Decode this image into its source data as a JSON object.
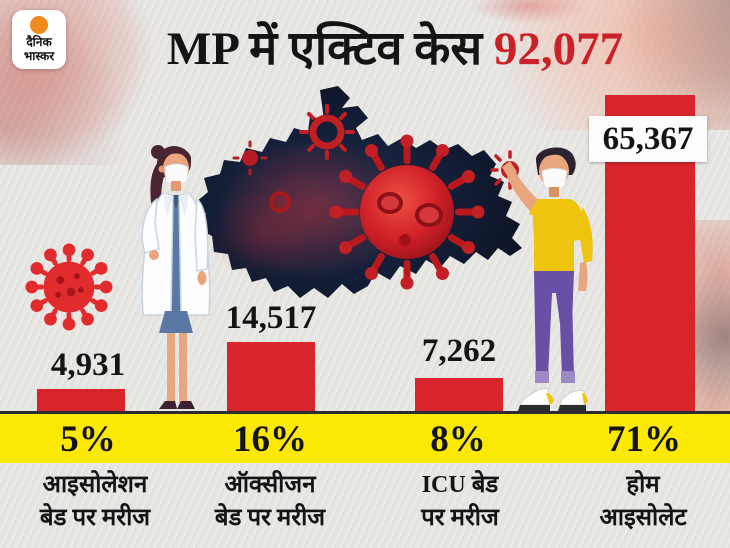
{
  "brand": {
    "line1": "दैनिक",
    "line2": "भास्कर"
  },
  "title": {
    "prefix": "MP में एक्टिव केस ",
    "value": "92,077"
  },
  "chart_data": {
    "type": "bar",
    "title": "MP में एक्टिव केस 92,077",
    "total_active_cases": 92077,
    "categories": [
      "आइसोलेशन बेड पर मरीज",
      "ऑक्सीजन बेड पर मरीज",
      "ICU बेड पर मरीज",
      "होम आइसोलेट"
    ],
    "values": [
      4931,
      14517,
      7262,
      65367
    ],
    "value_labels": [
      "4,931",
      "14,517",
      "7,262",
      "65,367"
    ],
    "percentages": [
      "5%",
      "16%",
      "8%",
      "71%"
    ],
    "xlabel": "",
    "ylabel": "",
    "legend": "none",
    "grid": false,
    "bar_color": "#d8252c",
    "percent_band_color": "#fbe905"
  },
  "columns": [
    {
      "value": "4,931",
      "percent": "5%",
      "label_line1": "आइसोलेशन",
      "label_line2": "बेड पर मरीज"
    },
    {
      "value": "14,517",
      "percent": "16%",
      "label_line1": "ऑक्सीजन",
      "label_line2": "बेड पर मरीज"
    },
    {
      "value": "7,262",
      "percent": "8%",
      "label_line1": "ICU बेड",
      "label_line2": "पर मरीज"
    },
    {
      "value": "65,367",
      "percent": "71%",
      "label_line1": "होम",
      "label_line2": "आइसोलेट"
    }
  ],
  "icons": {
    "coronavirus-icon": "red virus ball with spikes",
    "logo-sun-icon": "orange rising sun",
    "mp-map-graphic": "Madhya Pradesh map silhouette with coronavirus",
    "doctor-illustration": "masked female doctor in white coat",
    "masked-man-illustration": "masked man in yellow t-shirt and purple pants"
  },
  "colors": {
    "background": "#e6e5e2",
    "title_red": "#c92127",
    "bar_red": "#d8252c",
    "band_yellow": "#fbe905",
    "text_black": "#141414",
    "map_dark": "#0e1626",
    "virus_red": "#c41f26",
    "shirt_yellow": "#eec40f",
    "pants_purple": "#6850a6",
    "dress_blue": "#5b77a4",
    "logo_orange": "#f08a1d"
  }
}
